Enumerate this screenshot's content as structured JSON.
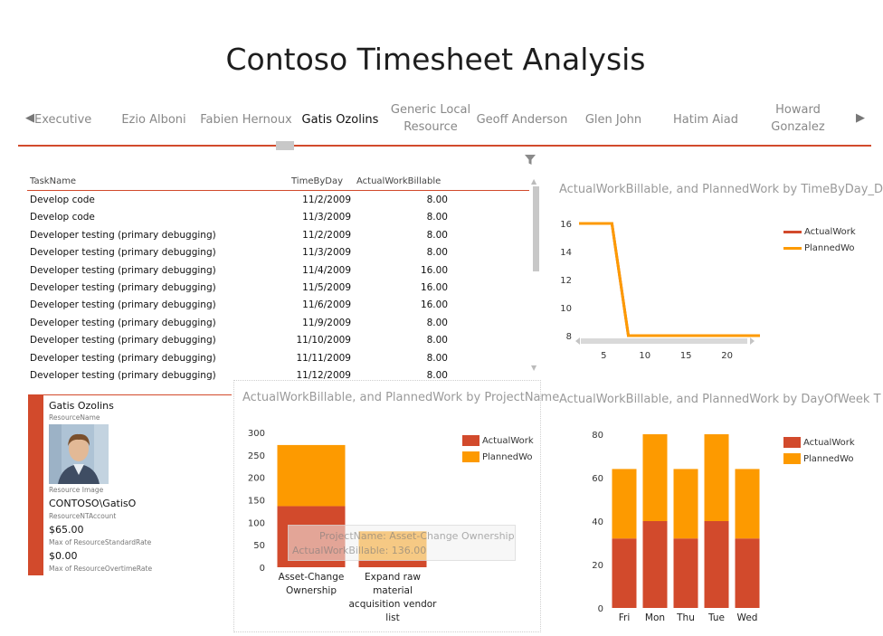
{
  "title": "Contoso Timesheet Analysis",
  "tiles": {
    "items": [
      "Executive",
      "Ezio Alboni",
      "Fabien Hernoux",
      "Gatis Ozolins",
      "Generic Local Resource",
      "Geoff Anderson",
      "Glen John",
      "Hatim Aiad",
      "Howard Gonzalez"
    ],
    "selected": "Gatis Ozolins",
    "prev_icon": "triangle-left-icon",
    "next_icon": "triangle-right-icon"
  },
  "filter_icon": "funnel-icon",
  "table": {
    "columns": [
      "TaskName",
      "TimeByDay",
      "ActualWorkBillable"
    ],
    "rows": [
      [
        "Develop code",
        "11/2/2009",
        "8.00"
      ],
      [
        "Develop code",
        "11/3/2009",
        "8.00"
      ],
      [
        "Developer testing (primary debugging)",
        "11/2/2009",
        "8.00"
      ],
      [
        "Developer testing (primary debugging)",
        "11/3/2009",
        "8.00"
      ],
      [
        "Developer testing (primary debugging)",
        "11/4/2009",
        "16.00"
      ],
      [
        "Developer testing (primary debugging)",
        "11/5/2009",
        "16.00"
      ],
      [
        "Developer testing (primary debugging)",
        "11/6/2009",
        "16.00"
      ],
      [
        "Developer testing (primary debugging)",
        "11/9/2009",
        "8.00"
      ],
      [
        "Developer testing (primary debugging)",
        "11/10/2009",
        "8.00"
      ],
      [
        "Developer testing (primary debugging)",
        "11/11/2009",
        "8.00"
      ],
      [
        "Developer testing (primary debugging)",
        "11/12/2009",
        "8.00"
      ]
    ]
  },
  "resource_card": {
    "name": "Gatis Ozolins",
    "name_label": "ResourceName",
    "image_label": "Resource Image",
    "account": "CONTOSO\\GatisO",
    "account_label": "ResourceNTAccount",
    "standard_rate": "$65.00",
    "standard_rate_label": "Max of ResourceStandardRate",
    "overtime_rate": "$0.00",
    "overtime_rate_label": "Max of ResourceOvertimeRate"
  },
  "colors": {
    "accent": "#d24a2c",
    "planned": "#fd9a00",
    "actual": "#d24a2c",
    "muted": "#9a9a9a"
  },
  "chart_data": [
    {
      "type": "line",
      "title": "ActualWorkBillable, and PlannedWork by TimeByDay_D",
      "x": [
        2,
        3,
        4,
        5,
        6,
        7,
        8,
        9,
        10,
        11,
        12,
        13,
        14,
        15,
        16,
        17,
        18,
        19,
        20,
        21,
        22,
        23,
        24
      ],
      "series": [
        {
          "name": "ActualWork",
          "values": [
            16,
            16,
            16,
            16,
            16,
            12,
            8,
            8,
            8,
            8,
            8,
            8,
            8,
            8,
            8,
            8,
            8,
            8,
            8,
            8,
            8,
            8,
            8
          ]
        },
        {
          "name": "PlannedWo",
          "values": [
            16,
            16,
            16,
            16,
            16,
            12,
            8,
            8,
            8,
            8,
            8,
            8,
            8,
            8,
            8,
            8,
            8,
            8,
            8,
            8,
            8,
            8,
            8
          ]
        }
      ],
      "xticks": [
        5,
        10,
        15,
        20
      ],
      "yticks": [
        8,
        10,
        12,
        14,
        16
      ],
      "xlim": [
        2,
        24
      ],
      "ylim": [
        8,
        16
      ],
      "legend": "right"
    },
    {
      "type": "bar",
      "stacked": true,
      "title": "ActualWorkBillable, and PlannedWork by ProjectName",
      "categories": [
        "Asset-Change Ownership",
        "Expand raw material acquisition vendor list"
      ],
      "series": [
        {
          "name": "ActualWork",
          "values": [
            136,
            16
          ]
        },
        {
          "name": "PlannedWo",
          "values": [
            136,
            64
          ]
        }
      ],
      "yticks": [
        0,
        50,
        100,
        150,
        200,
        250,
        300
      ],
      "ylim": [
        0,
        300
      ],
      "legend": "right",
      "tooltip": {
        "line1": "ProjectName: Asset-Change Ownership",
        "line2": "ActualWorkBillable: 136.00"
      }
    },
    {
      "type": "bar",
      "stacked": true,
      "title": "ActualWorkBillable, and PlannedWork by DayOfWeek T",
      "categories": [
        "Fri",
        "Mon",
        "Thu",
        "Tue",
        "Wed"
      ],
      "series": [
        {
          "name": "ActualWork",
          "values": [
            32,
            40,
            32,
            40,
            32
          ]
        },
        {
          "name": "PlannedWo",
          "values": [
            32,
            40,
            32,
            40,
            32
          ]
        }
      ],
      "yticks": [
        0,
        20,
        40,
        60,
        80
      ],
      "ylim": [
        0,
        80
      ],
      "legend": "right"
    }
  ]
}
